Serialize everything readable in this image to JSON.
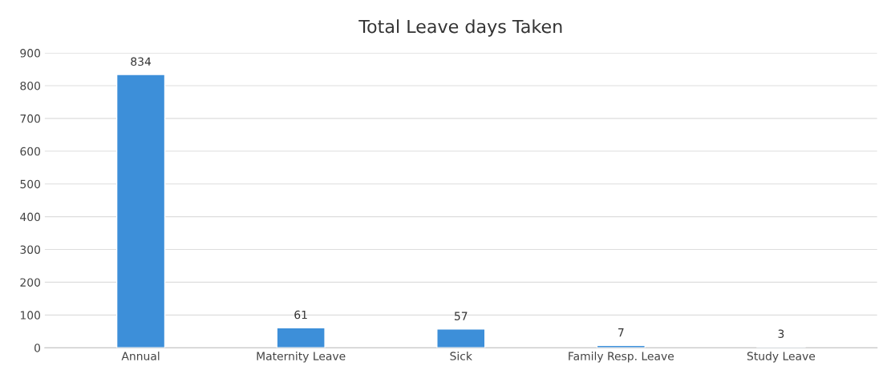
{
  "chart_data": {
    "type": "bar",
    "title": "Total Leave days Taken",
    "categories": [
      "Annual",
      "Maternity Leave",
      "Sick",
      "Family Resp. Leave",
      "Study Leave"
    ],
    "values": [
      834,
      61,
      57,
      7,
      3
    ],
    "color": "#3d8fd9",
    "ylim": [
      0,
      900
    ],
    "yticks": [
      0,
      100,
      200,
      300,
      400,
      500,
      600,
      700,
      800,
      900
    ],
    "grid": "y",
    "data_labels": true
  }
}
